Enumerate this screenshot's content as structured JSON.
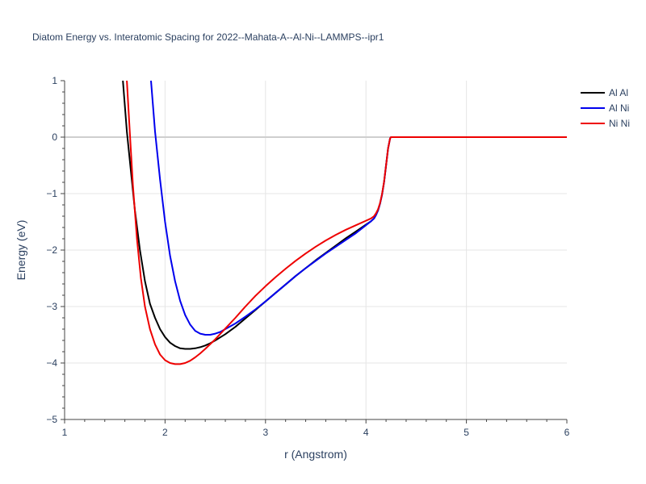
{
  "chart_data": {
    "type": "line",
    "title": "Diatom Energy vs. Interatomic Spacing for 2022--Mahata-A--Al-Ni--LAMMPS--ipr1",
    "xlabel": "r (Angstrom)",
    "ylabel": "Energy (eV)",
    "xlim": [
      1,
      6
    ],
    "ylim": [
      -5,
      1
    ],
    "xticks": [
      1,
      2,
      3,
      4,
      5,
      6
    ],
    "xtick_labels": [
      "1",
      "2",
      "3",
      "4",
      "5",
      "6"
    ],
    "yticks": [
      1,
      0,
      -1,
      -2,
      -3,
      -4,
      -5
    ],
    "ytick_labels": [
      "1",
      "0",
      "−1",
      "−2",
      "−3",
      "−4",
      "−5"
    ],
    "grid": true,
    "legend_position": "top-right",
    "series": [
      {
        "name": "Al Al",
        "color": "#000000",
        "x": [
          1.58,
          1.62,
          1.66,
          1.7,
          1.75,
          1.8,
          1.85,
          1.9,
          1.95,
          2.0,
          2.05,
          2.1,
          2.15,
          2.2,
          2.25,
          2.3,
          2.35,
          2.4,
          2.45,
          2.5,
          2.6,
          2.7,
          2.8,
          2.9,
          3.0,
          3.1,
          3.2,
          3.3,
          3.4,
          3.5,
          3.6,
          3.7,
          3.8,
          3.9,
          4.0,
          4.05,
          4.08,
          4.1,
          4.12,
          4.14,
          4.16,
          4.18,
          4.2,
          4.22,
          4.24,
          4.25,
          4.3,
          4.5,
          5.0,
          5.5,
          6.0
        ],
        "y": [
          1.0,
          0.1,
          -0.6,
          -1.3,
          -2.0,
          -2.55,
          -2.95,
          -3.2,
          -3.4,
          -3.54,
          -3.64,
          -3.7,
          -3.74,
          -3.75,
          -3.75,
          -3.74,
          -3.72,
          -3.69,
          -3.65,
          -3.6,
          -3.49,
          -3.36,
          -3.21,
          -3.06,
          -2.91,
          -2.76,
          -2.61,
          -2.46,
          -2.32,
          -2.18,
          -2.05,
          -1.92,
          -1.79,
          -1.67,
          -1.55,
          -1.49,
          -1.44,
          -1.38,
          -1.3,
          -1.18,
          -1.02,
          -0.8,
          -0.5,
          -0.2,
          -0.02,
          0.0,
          0.0,
          0.0,
          0.0,
          0.0,
          0.0
        ]
      },
      {
        "name": "Al Ni",
        "color": "#0000ee",
        "x": [
          1.86,
          1.9,
          1.95,
          2.0,
          2.05,
          2.1,
          2.15,
          2.2,
          2.25,
          2.3,
          2.35,
          2.4,
          2.45,
          2.5,
          2.55,
          2.6,
          2.7,
          2.8,
          2.9,
          3.0,
          3.1,
          3.2,
          3.3,
          3.4,
          3.5,
          3.6,
          3.7,
          3.8,
          3.9,
          4.0,
          4.05,
          4.08,
          4.1,
          4.12,
          4.14,
          4.16,
          4.18,
          4.2,
          4.22,
          4.24,
          4.25,
          4.3,
          4.5,
          5.0,
          5.5,
          6.0
        ],
        "y": [
          1.0,
          0.1,
          -0.75,
          -1.5,
          -2.1,
          -2.55,
          -2.9,
          -3.15,
          -3.32,
          -3.43,
          -3.48,
          -3.5,
          -3.5,
          -3.48,
          -3.45,
          -3.4,
          -3.3,
          -3.18,
          -3.05,
          -2.91,
          -2.76,
          -2.61,
          -2.46,
          -2.32,
          -2.19,
          -2.06,
          -1.94,
          -1.82,
          -1.7,
          -1.56,
          -1.49,
          -1.44,
          -1.38,
          -1.3,
          -1.18,
          -1.02,
          -0.8,
          -0.5,
          -0.2,
          -0.02,
          0.0,
          0.0,
          0.0,
          0.0,
          0.0,
          0.0
        ]
      },
      {
        "name": "Ni Ni",
        "color": "#ee0000",
        "x": [
          1.62,
          1.65,
          1.68,
          1.72,
          1.76,
          1.8,
          1.85,
          1.9,
          1.95,
          2.0,
          2.05,
          2.1,
          2.15,
          2.2,
          2.25,
          2.3,
          2.35,
          2.4,
          2.5,
          2.6,
          2.7,
          2.8,
          2.9,
          3.0,
          3.1,
          3.2,
          3.3,
          3.4,
          3.5,
          3.6,
          3.7,
          3.8,
          3.9,
          4.0,
          4.05,
          4.08,
          4.1,
          4.12,
          4.14,
          4.16,
          4.18,
          4.2,
          4.22,
          4.24,
          4.25,
          4.3,
          4.5,
          5.0,
          5.5,
          6.0
        ],
        "y": [
          1.0,
          0.05,
          -0.85,
          -1.8,
          -2.5,
          -3.0,
          -3.4,
          -3.67,
          -3.85,
          -3.95,
          -4.0,
          -4.02,
          -4.02,
          -4.0,
          -3.96,
          -3.9,
          -3.83,
          -3.75,
          -3.58,
          -3.39,
          -3.2,
          -3.0,
          -2.81,
          -2.64,
          -2.48,
          -2.33,
          -2.19,
          -2.06,
          -1.94,
          -1.83,
          -1.73,
          -1.64,
          -1.56,
          -1.48,
          -1.44,
          -1.4,
          -1.35,
          -1.28,
          -1.17,
          -1.01,
          -0.79,
          -0.5,
          -0.2,
          -0.02,
          0.0,
          0.0,
          0.0,
          0.0,
          0.0,
          0.0
        ]
      }
    ]
  }
}
